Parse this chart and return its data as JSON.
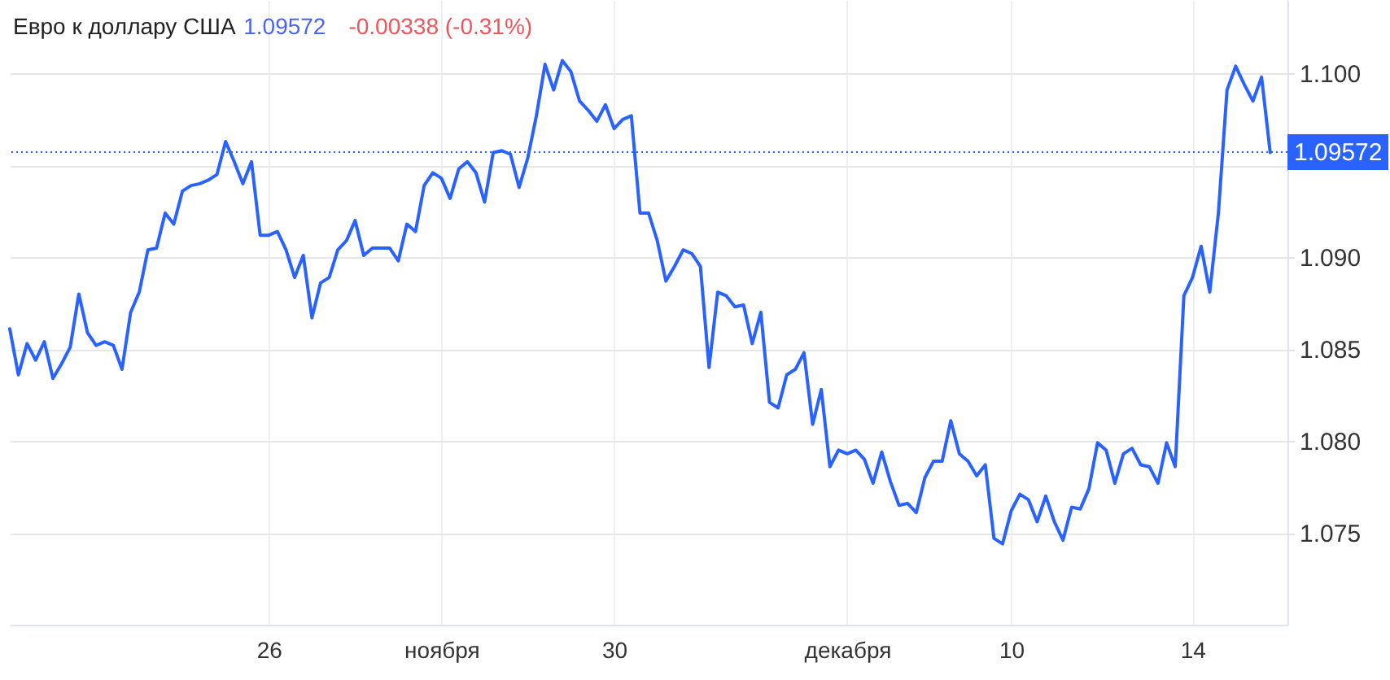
{
  "chart_data": {
    "type": "line",
    "title": "Евро к доллару США",
    "annotations": [
      "1.09572",
      "-0.00338 (-0.31%)"
    ],
    "categories": [
      null,
      null,
      null,
      null,
      null,
      null,
      null,
      null,
      null,
      null,
      null,
      null,
      null,
      null,
      null,
      null,
      null,
      null,
      null,
      null,
      null,
      null,
      null,
      null,
      null,
      null,
      null,
      null,
      null,
      null,
      "26",
      null,
      null,
      null,
      null,
      null,
      null,
      null,
      null,
      null,
      null,
      null,
      null,
      null,
      null,
      null,
      null,
      null,
      null,
      null,
      "ноября",
      null,
      null,
      null,
      null,
      null,
      null,
      null,
      null,
      null,
      null,
      null,
      null,
      null,
      null,
      null,
      null,
      null,
      null,
      null,
      "30",
      null,
      null,
      null,
      null,
      null,
      null,
      null,
      null,
      null,
      null,
      null,
      null,
      null,
      null,
      null,
      null,
      null,
      null,
      null,
      null,
      null,
      null,
      null,
      null,
      null,
      null,
      "декабря",
      null,
      null,
      null,
      null,
      null,
      null,
      null,
      null,
      null,
      null,
      null,
      null,
      null,
      null,
      null,
      null,
      null,
      null,
      "10",
      null,
      null,
      null,
      null,
      null,
      null,
      null,
      null,
      null,
      null,
      null,
      null,
      null,
      null,
      null,
      null,
      null,
      null,
      null,
      null,
      "14",
      null,
      null,
      null,
      null,
      null,
      null,
      null,
      null,
      null
    ],
    "series": [
      {
        "color": "#2962ff",
        "values": [
          1.0861,
          1.0836,
          1.0853,
          1.0844,
          1.0854,
          1.0834,
          1.0842,
          1.0851,
          1.088,
          1.0859,
          1.0852,
          1.0854,
          1.0852,
          1.0839,
          1.087,
          1.0881,
          1.0904,
          1.0905,
          1.0924,
          1.0918,
          1.0936,
          1.0939,
          1.094,
          1.0942,
          1.0945,
          1.0963,
          1.0952,
          1.094,
          1.0952,
          1.0912,
          1.0912,
          1.0914,
          1.0904,
          1.0889,
          1.0901,
          1.0867,
          1.0886,
          1.0889,
          1.0904,
          1.0909,
          1.092,
          1.0901,
          1.0905,
          1.0905,
          1.0905,
          1.0898,
          1.0918,
          1.0914,
          1.0939,
          1.0946,
          1.0943,
          1.0932,
          1.0948,
          1.0952,
          1.0946,
          1.093,
          1.0957,
          1.0958,
          1.0956,
          1.0938,
          1.0954,
          1.0977,
          1.1005,
          1.0991,
          1.1007,
          1.1001,
          1.0985,
          1.098,
          1.0974,
          1.0983,
          1.097,
          1.0975,
          1.0977,
          1.0924,
          1.0924,
          1.0909,
          1.0887,
          1.0895,
          1.0904,
          1.0902,
          1.0895,
          1.084,
          1.0881,
          1.0879,
          1.0873,
          1.0874,
          1.0853,
          1.087,
          1.0821,
          1.0818,
          1.0836,
          1.0839,
          1.0848,
          1.0809,
          1.0828,
          1.0786,
          1.0795,
          1.0793,
          1.0795,
          1.079,
          1.0777,
          1.0794,
          1.0778,
          1.0765,
          1.0766,
          1.0761,
          1.078,
          1.0789,
          1.0789,
          1.0811,
          1.0793,
          1.0789,
          1.0781,
          1.0787,
          1.0747,
          1.0744,
          1.0762,
          1.0771,
          1.0768,
          1.0756,
          1.077,
          1.0756,
          1.0746,
          1.0764,
          1.0763,
          1.0774,
          1.0799,
          1.0795,
          1.0777,
          1.0793,
          1.0796,
          1.0787,
          1.0786,
          1.0777,
          1.0799,
          1.0786,
          1.0879,
          1.0889,
          1.0906,
          1.0881,
          1.0924,
          1.0991,
          1.1004,
          1.0994,
          1.0985,
          1.0998,
          1.0957
        ]
      }
    ],
    "ylim": [
      1.07,
      1.104
    ],
    "yticks": [
      {
        "value": 1.075,
        "label": "1.075"
      },
      {
        "value": 1.08,
        "label": "1.080"
      },
      {
        "value": 1.085,
        "label": "1.085"
      },
      {
        "value": 1.09,
        "label": "1.090"
      },
      {
        "value": 1.095,
        "label": null
      },
      {
        "value": 1.1,
        "label": "1.100"
      }
    ],
    "grid": true,
    "marker": "none",
    "line_style": "solid",
    "ref_lines": [
      {
        "axis": "y",
        "value": 1.09572,
        "label": "1.09572",
        "color": "#2962ff",
        "line_style": "dotted"
      }
    ]
  }
}
